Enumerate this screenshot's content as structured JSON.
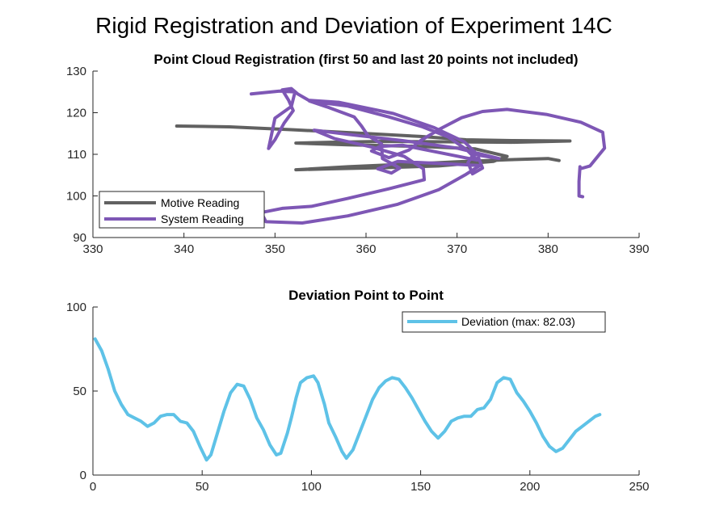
{
  "figure": {
    "title": "Rigid Registration and Deviation of Experiment 14C"
  },
  "chart_data": [
    {
      "type": "line",
      "title": "Point Cloud Registration (first 50 and last 20 points not included)",
      "xlabel": "",
      "ylabel": "",
      "xlim": [
        330,
        390
      ],
      "ylim": [
        90,
        130
      ],
      "xticks": [
        "330",
        "340",
        "350",
        "360",
        "370",
        "380",
        "390"
      ],
      "yticks": [
        "90",
        "100",
        "110",
        "120",
        "130"
      ],
      "grid": false,
      "legend_position": "bottom-left",
      "series": [
        {
          "name": "Motive Reading",
          "color": "#616161",
          "points": [
            [
              339.2,
              116.8
            ],
            [
              345,
              116.6
            ],
            [
              352,
              115.9
            ],
            [
              360,
              115
            ],
            [
              366,
              114.3
            ],
            [
              371,
              113.5
            ],
            [
              376,
              113.3
            ],
            [
              382.4,
              113.2
            ],
            [
              376,
              112.9
            ],
            [
              370,
              113
            ],
            [
              362,
              113.1
            ],
            [
              356,
              112.9
            ],
            [
              352.3,
              112.7
            ],
            [
              358,
              112.3
            ],
            [
              366,
              111.9
            ],
            [
              372,
              111.3
            ],
            [
              375.5,
              109.5
            ],
            [
              374,
              108.3
            ],
            [
              368,
              107.2
            ],
            [
              362,
              106.8
            ],
            [
              356,
              106.5
            ],
            [
              352.3,
              106.3
            ],
            [
              358,
              107
            ],
            [
              364,
              107.6
            ],
            [
              370,
              108.2
            ],
            [
              375.5,
              108.7
            ],
            [
              380,
              109
            ],
            [
              381.2,
              108.5
            ]
          ]
        },
        {
          "name": "System Reading",
          "color": "#7e57b5",
          "points": [
            [
              347.4,
              124.5
            ],
            [
              350.5,
              125.2
            ],
            [
              352.2,
              125
            ],
            [
              351.8,
              121.5
            ],
            [
              350,
              118.7
            ],
            [
              349.6,
              114.5
            ],
            [
              349.3,
              111.4
            ],
            [
              350,
              113.5
            ],
            [
              351,
              117.5
            ],
            [
              352,
              120.5
            ],
            [
              351.5,
              123
            ],
            [
              350.8,
              125.5
            ],
            [
              351.8,
              125.8
            ],
            [
              352.5,
              124.5
            ],
            [
              353.7,
              123
            ],
            [
              357,
              122.5
            ],
            [
              363,
              119.8
            ],
            [
              367.5,
              116.4
            ],
            [
              370.8,
              113
            ],
            [
              372.2,
              110
            ],
            [
              372.8,
              106.7
            ],
            [
              371.7,
              105.3
            ],
            [
              371.2,
              108
            ],
            [
              371.8,
              110
            ],
            [
              374.6,
              109
            ],
            [
              370,
              111.5
            ],
            [
              364,
              113.3
            ],
            [
              358,
              114.8
            ],
            [
              354.3,
              115.8
            ],
            [
              356.5,
              113.8
            ],
            [
              360.5,
              111.8
            ],
            [
              364.2,
              109.5
            ],
            [
              366.3,
              106.5
            ],
            [
              366.4,
              103.9
            ],
            [
              362.5,
              101.7
            ],
            [
              358,
              99.4
            ],
            [
              354,
              97.5
            ],
            [
              350.8,
              97
            ],
            [
              348.5,
              96
            ],
            [
              349,
              93.8
            ],
            [
              353,
              93.5
            ],
            [
              358,
              95.2
            ],
            [
              363.5,
              98
            ],
            [
              368,
              101.5
            ],
            [
              371,
              105.2
            ],
            [
              372.5,
              107.3
            ],
            [
              368,
              107.8
            ],
            [
              363.5,
              108.3
            ],
            [
              361.3,
              106.5
            ],
            [
              362.8,
              105.5
            ],
            [
              363.7,
              106.7
            ],
            [
              361.8,
              109
            ],
            [
              361.7,
              112.5
            ],
            [
              360.2,
              114.5
            ],
            [
              359.5,
              116.8
            ],
            [
              358.7,
              119
            ],
            [
              355.7,
              121.4
            ],
            [
              353.8,
              122.8
            ],
            [
              358,
              121.6
            ],
            [
              362.5,
              119
            ],
            [
              366.2,
              116.6
            ],
            [
              369,
              114.2
            ],
            [
              371,
              111.2
            ],
            [
              372.2,
              108.6
            ],
            [
              364,
              112.2
            ],
            [
              361.5,
              111.9
            ],
            [
              360.6,
              110.8
            ],
            [
              362.5,
              109.2
            ],
            [
              364.7,
              111
            ],
            [
              366,
              113.3
            ],
            [
              368.2,
              116.2
            ],
            [
              370.5,
              118.8
            ],
            [
              372.8,
              120.3
            ],
            [
              375.5,
              120.8
            ],
            [
              379.8,
              119.6
            ],
            [
              383.6,
              117.7
            ],
            [
              386,
              115.3
            ],
            [
              386.2,
              111.5
            ],
            [
              384.6,
              107.2
            ],
            [
              383.5,
              106.5
            ],
            [
              383.5,
              107
            ],
            [
              383.4,
              103.5
            ],
            [
              383.4,
              100
            ],
            [
              383.8,
              99.8
            ]
          ]
        }
      ]
    },
    {
      "type": "line",
      "title": "Deviation Point to Point",
      "xlabel": "",
      "ylabel": "",
      "xlim": [
        0,
        250
      ],
      "ylim": [
        0,
        100
      ],
      "xticks": [
        "0",
        "50",
        "100",
        "150",
        "200",
        "250"
      ],
      "yticks": [
        "0",
        "50",
        "100"
      ],
      "grid": false,
      "legend_position": "top-right",
      "series": [
        {
          "name": "Deviation (max: 82.03)",
          "color": "#5ec2e7",
          "points": [
            [
              1,
              81
            ],
            [
              4,
              74
            ],
            [
              7,
              63
            ],
            [
              10,
              50
            ],
            [
              13,
              42
            ],
            [
              16,
              36
            ],
            [
              19,
              34
            ],
            [
              22,
              32
            ],
            [
              25,
              29
            ],
            [
              28,
              31
            ],
            [
              31,
              35
            ],
            [
              34,
              36
            ],
            [
              37,
              36
            ],
            [
              40,
              32
            ],
            [
              43,
              31
            ],
            [
              46,
              26
            ],
            [
              49,
              17
            ],
            [
              52,
              9
            ],
            [
              54,
              12
            ],
            [
              57,
              25
            ],
            [
              60,
              38
            ],
            [
              63,
              49
            ],
            [
              66,
              54
            ],
            [
              69,
              53
            ],
            [
              72,
              45
            ],
            [
              75,
              34
            ],
            [
              78,
              27
            ],
            [
              81,
              18
            ],
            [
              84,
              12
            ],
            [
              86,
              13
            ],
            [
              89,
              25
            ],
            [
              91,
              35
            ],
            [
              93,
              46
            ],
            [
              95,
              55
            ],
            [
              98,
              58
            ],
            [
              101,
              59
            ],
            [
              103,
              55
            ],
            [
              106,
              42
            ],
            [
              108,
              31
            ],
            [
              111,
              23
            ],
            [
              114,
              14
            ],
            [
              116,
              10
            ],
            [
              119,
              15
            ],
            [
              122,
              25
            ],
            [
              125,
              35
            ],
            [
              128,
              45
            ],
            [
              131,
              52
            ],
            [
              134,
              56
            ],
            [
              137,
              58
            ],
            [
              140,
              57
            ],
            [
              143,
              52
            ],
            [
              146,
              46
            ],
            [
              149,
              39
            ],
            [
              152,
              32
            ],
            [
              155,
              26
            ],
            [
              158,
              22
            ],
            [
              161,
              26
            ],
            [
              164,
              32
            ],
            [
              167,
              34
            ],
            [
              170,
              35
            ],
            [
              173,
              35
            ],
            [
              176,
              39
            ],
            [
              179,
              40
            ],
            [
              182,
              45
            ],
            [
              185,
              55
            ],
            [
              188,
              58
            ],
            [
              191,
              57
            ],
            [
              194,
              49
            ],
            [
              197,
              44
            ],
            [
              200,
              38
            ],
            [
              203,
              31
            ],
            [
              206,
              23
            ],
            [
              209,
              17
            ],
            [
              212,
              14
            ],
            [
              215,
              16
            ],
            [
              218,
              21
            ],
            [
              221,
              26
            ],
            [
              224,
              29
            ],
            [
              227,
              32
            ],
            [
              230,
              35
            ],
            [
              232,
              36
            ]
          ]
        }
      ]
    }
  ]
}
